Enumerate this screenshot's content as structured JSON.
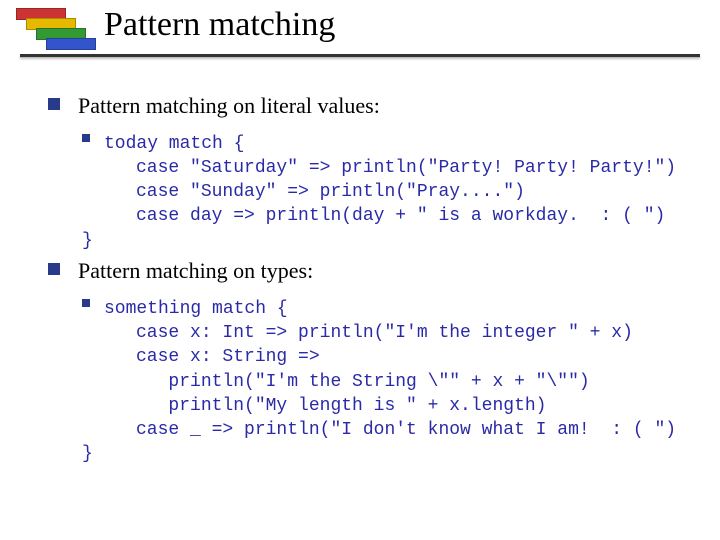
{
  "colors": {
    "bullet": "#2a3a8a",
    "code": "#2a2aa8",
    "text": "#000000",
    "underline": "#333333",
    "logo": [
      "#cc3333",
      "#e6b800",
      "#339933",
      "#3355cc"
    ],
    "background": "#ffffff"
  },
  "title": "Pattern matching",
  "points": [
    {
      "text": "Pattern matching on literal values:",
      "code_first": "today match {",
      "code_rest": "     case \"Saturday\" => println(\"Party! Party! Party!\")\n     case \"Sunday\" => println(\"Pray....\")\n     case day => println(day + \" is a workday.  : ( \")\n}"
    },
    {
      "text": "Pattern matching on types:",
      "code_first": "something match {",
      "code_rest": "     case x: Int => println(\"I'm the integer \" + x)\n     case x: String =>\n        println(\"I'm the String \\\"\" + x + \"\\\"\")\n        println(\"My length is \" + x.length)\n     case _ => println(\"I don't know what I am!  : ( \")\n}"
    }
  ]
}
